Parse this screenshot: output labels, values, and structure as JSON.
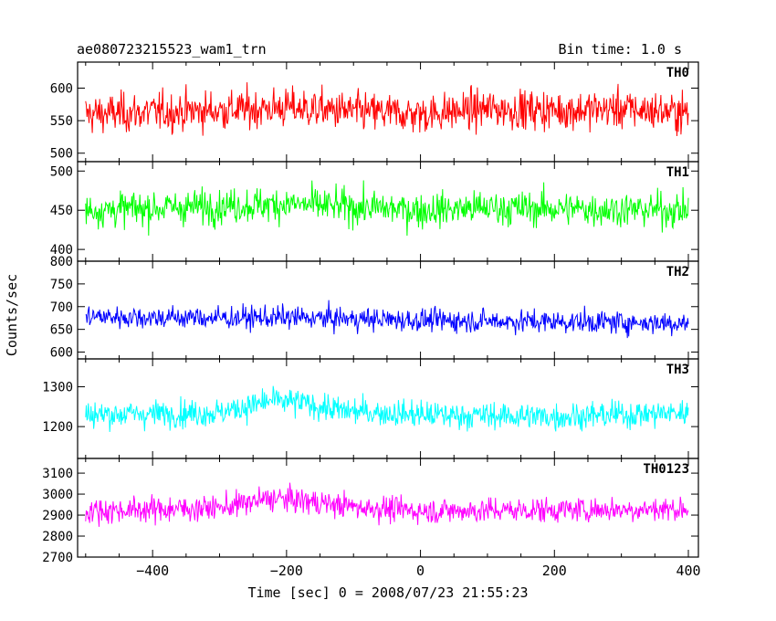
{
  "chart_data": {
    "type": "line",
    "title": "ae080723215523_wam1_trn",
    "subtitle": "Bin time: 1.0 s",
    "xlabel": "Time [sec] 0 = 2008/07/23 21:55:23",
    "ylabel": "Counts/sec",
    "xlim": [
      -512,
      415
    ],
    "x_data_range": [
      -500,
      400
    ],
    "xticks": [
      -400,
      -200,
      0,
      200,
      400
    ],
    "xtick_labels": [
      "−400",
      "−200",
      "0",
      "200",
      "400"
    ],
    "grid": false,
    "panels": [
      {
        "name": "TH0",
        "color": "#ff0000",
        "ylim": [
          487,
          640
        ],
        "yticks": [
          500,
          550,
          600
        ],
        "ytick_labels": [
          "500",
          "550",
          "600"
        ],
        "mean": 560,
        "noise": 30,
        "trend": [
          [
            -500,
            0
          ],
          [
            -300,
            6
          ],
          [
            -200,
            10
          ],
          [
            -100,
            4
          ],
          [
            0,
            0
          ],
          [
            100,
            8
          ],
          [
            200,
            6
          ],
          [
            300,
            8
          ],
          [
            400,
            2
          ]
        ]
      },
      {
        "name": "TH1",
        "color": "#00ff00",
        "ylim": [
          385,
          512
        ],
        "yticks": [
          400,
          450,
          500
        ],
        "ytick_labels": [
          "400",
          "450",
          "500"
        ],
        "mean": 450,
        "noise": 22,
        "trend": [
          [
            -500,
            0
          ],
          [
            -200,
            8
          ],
          [
            -100,
            4
          ],
          [
            0,
            0
          ],
          [
            100,
            3
          ],
          [
            200,
            2
          ],
          [
            400,
            0
          ]
        ]
      },
      {
        "name": "TH2",
        "color": "#0000ff",
        "ylim": [
          585,
          800
        ],
        "yticks": [
          600,
          650,
          700,
          750,
          800
        ],
        "ytick_labels": [
          "600",
          "650",
          "700",
          "750",
          "800"
        ],
        "mean": 670,
        "noise": 25,
        "trend": [
          [
            -500,
            8
          ],
          [
            -300,
            5
          ],
          [
            -200,
            6
          ],
          [
            0,
            0
          ],
          [
            200,
            -3
          ],
          [
            400,
            -6
          ]
        ]
      },
      {
        "name": "TH3",
        "color": "#00ffff",
        "ylim": [
          1120,
          1370
        ],
        "yticks": [
          1200,
          1300
        ],
        "ytick_labels": [
          "1200",
          "1300"
        ],
        "mean": 1230,
        "noise": 34,
        "trend": [
          [
            -500,
            0
          ],
          [
            -300,
            5
          ],
          [
            -220,
            35
          ],
          [
            -180,
            30
          ],
          [
            -120,
            10
          ],
          [
            0,
            0
          ],
          [
            200,
            -5
          ],
          [
            400,
            5
          ]
        ]
      },
      {
        "name": "TH0123",
        "color": "#ff00ff",
        "ylim": [
          2700,
          3170
        ],
        "yticks": [
          2700,
          2800,
          2900,
          3000,
          3100
        ],
        "ytick_labels": [
          "2700",
          "2800",
          "2900",
          "3000",
          "3100"
        ],
        "mean": 2920,
        "noise": 60,
        "trend": [
          [
            -500,
            0
          ],
          [
            -300,
            15
          ],
          [
            -220,
            60
          ],
          [
            -180,
            50
          ],
          [
            -100,
            20
          ],
          [
            0,
            0
          ],
          [
            200,
            5
          ],
          [
            400,
            10
          ]
        ]
      }
    ]
  }
}
